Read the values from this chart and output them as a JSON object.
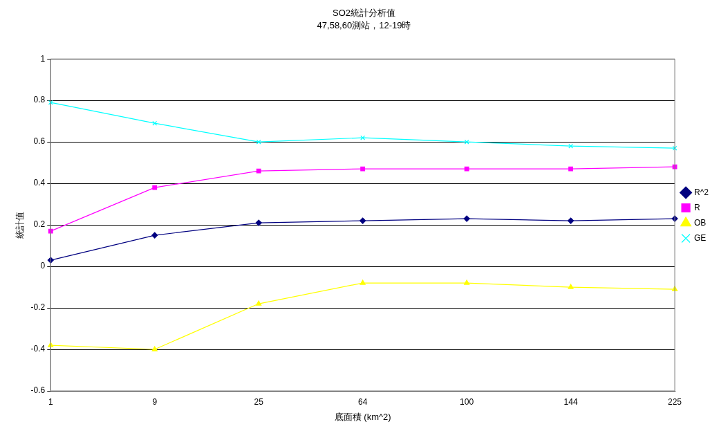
{
  "chart_data": {
    "type": "line",
    "title": "SO2統計分析值",
    "subtitle": "47,58,60測站，12-19時",
    "xlabel": "底面積 (km^2)",
    "ylabel": "統計值",
    "categories": [
      "1",
      "9",
      "25",
      "64",
      "100",
      "144",
      "225"
    ],
    "series": [
      {
        "name": "R^2",
        "color": "#000080",
        "marker": "diamond",
        "values": [
          0.03,
          0.15,
          0.21,
          0.22,
          0.23,
          0.22,
          0.23
        ]
      },
      {
        "name": "R",
        "color": "#ff00ff",
        "marker": "square",
        "values": [
          0.17,
          0.38,
          0.46,
          0.47,
          0.47,
          0.47,
          0.48
        ]
      },
      {
        "name": "OB",
        "color": "#ffff00",
        "marker": "triangle",
        "values": [
          -0.38,
          -0.4,
          -0.18,
          -0.08,
          -0.08,
          -0.1,
          -0.11
        ]
      },
      {
        "name": "GE",
        "color": "#00ffff",
        "marker": "cross",
        "values": [
          0.79,
          0.69,
          0.6,
          0.62,
          0.6,
          0.58,
          0.57
        ]
      }
    ],
    "ylim": [
      -0.6,
      1
    ],
    "yticks": [
      -0.6,
      -0.4,
      -0.2,
      0,
      0.2,
      0.4,
      0.6,
      0.8,
      1
    ],
    "grid": "y",
    "legend": "right",
    "line_style": "solid"
  }
}
